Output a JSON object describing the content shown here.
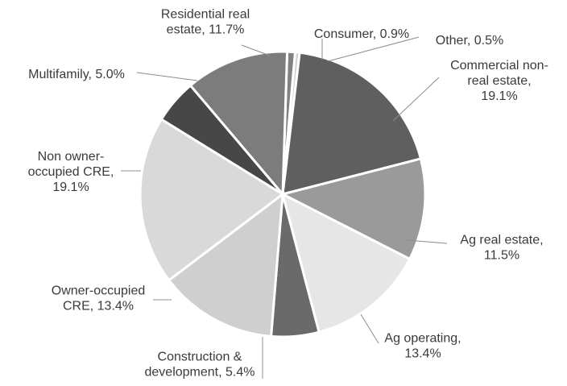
{
  "chart_data": {
    "type": "pie",
    "title": "",
    "start_angle_deg": 1.8,
    "direction": "clockwise",
    "legend": "none",
    "slices": [
      {
        "label_lines": [
          "Consumer, 0.9%"
        ],
        "name": "Consumer",
        "value": 0.9,
        "color": "#828282"
      },
      {
        "label_lines": [
          "Other, 0.5%"
        ],
        "name": "Other",
        "value": 0.5,
        "color": "#d2d2d2"
      },
      {
        "label_lines": [
          "Commercial non-",
          "real estate,",
          "19.1%"
        ],
        "name": "Commercial non-real estate",
        "value": 19.1,
        "color": "#5f5f5f"
      },
      {
        "label_lines": [
          "Ag real estate,",
          "11.5%"
        ],
        "name": "Ag real estate",
        "value": 11.5,
        "color": "#9a9a9a"
      },
      {
        "label_lines": [
          "Ag operating,",
          "13.4%"
        ],
        "name": "Ag operating",
        "value": 13.4,
        "color": "#e6e6e6"
      },
      {
        "label_lines": [
          "Construction &",
          "development, 5.4%"
        ],
        "name": "Construction & development",
        "value": 5.4,
        "color": "#6a6a6a"
      },
      {
        "label_lines": [
          "Owner-occupied",
          "CRE, 13.4%"
        ],
        "name": "Owner-occupied CRE",
        "value": 13.4,
        "color": "#cfcfcf"
      },
      {
        "label_lines": [
          "Non owner-",
          "occupied CRE,",
          "19.1%"
        ],
        "name": "Non owner-occupied CRE",
        "value": 19.1,
        "color": "#d9d9d9"
      },
      {
        "label_lines": [
          "Multifamily, 5.0%"
        ],
        "name": "Multifamily",
        "value": 5.0,
        "color": "#474747"
      },
      {
        "label_lines": [
          "Residential real",
          "estate, 11.7%"
        ],
        "name": "Residential real estate",
        "value": 11.7,
        "color": "#7c7c7c"
      }
    ]
  }
}
